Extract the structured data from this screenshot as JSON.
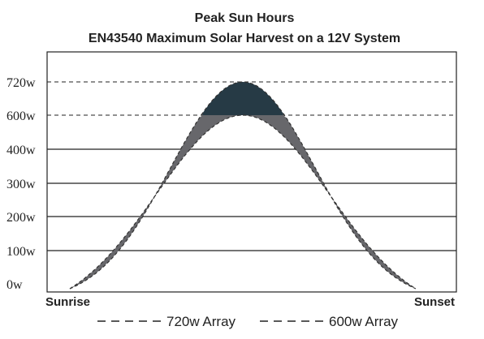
{
  "chart_data": {
    "type": "area",
    "title": "Peak Sun Hours",
    "subtitle": "EN43540 Maximum Solar Harvest on a 12V System",
    "xlabel": "",
    "ylabel": "",
    "x_start_label": "Sunrise",
    "x_end_label": "Sunset",
    "y_ticks": [
      {
        "value": 0,
        "label": "0w"
      },
      {
        "value": 100,
        "label": "100w"
      },
      {
        "value": 200,
        "label": "200w"
      },
      {
        "value": 300,
        "label": "300w"
      },
      {
        "value": 400,
        "label": "400w"
      },
      {
        "value": 600,
        "label": "600w"
      },
      {
        "value": 720,
        "label": "720w"
      }
    ],
    "ylim": [
      0,
      720
    ],
    "grid": true,
    "dashed_gridlines": [
      600,
      720
    ],
    "legend_position": "bottom",
    "series": [
      {
        "name": "720w Array",
        "peak": 720,
        "dash": "dashed"
      },
      {
        "name": "600w Array",
        "peak": 600,
        "dash": "dashed"
      }
    ],
    "colors": {
      "clipped_above_600": "#263a45",
      "extra_harvest": "#67676b",
      "grid": "#222222",
      "text": "#222222"
    }
  }
}
